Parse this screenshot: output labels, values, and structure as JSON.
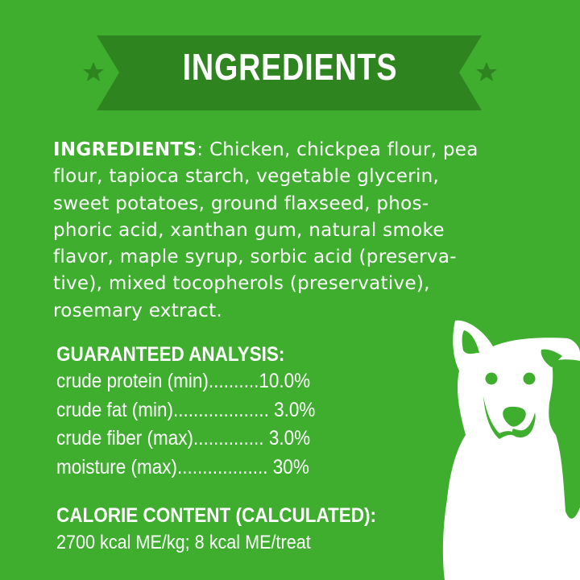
{
  "colors": {
    "background": "#3fae2f",
    "banner": "#2e8520",
    "star": "#2e8520",
    "text": "#ffffff"
  },
  "banner": {
    "title": "INGREDIENTS",
    "icons": [
      "star-icon",
      "star-icon"
    ]
  },
  "ingredients": {
    "label": "INGREDIENTS",
    "lines": [
      ": Chicken, chickpea flour, pea",
      "flour, tapioca starch, vegetable glycerin,",
      "sweet potatoes, ground flaxseed, phos-",
      "phoric acid, xanthan gum, natural smoke",
      "flavor, maple syrup, sorbic acid (preserva-",
      "tive), mixed tocopherols (preservative),",
      "rosemary extract."
    ]
  },
  "analysis": {
    "title": "GUARANTEED ANALYSIS:",
    "rows": [
      "crude protein (min)..........10.0%",
      "crude fat (min)................... 3.0%",
      "crude fiber (max).............. 3.0%",
      "moisture (max).................. 30%"
    ]
  },
  "calorie": {
    "title": "CALORIE CONTENT (CALCULATED):",
    "text": "2700 kcal ME/kg; 8 kcal ME/treat"
  },
  "illustration": "dog-illustration"
}
